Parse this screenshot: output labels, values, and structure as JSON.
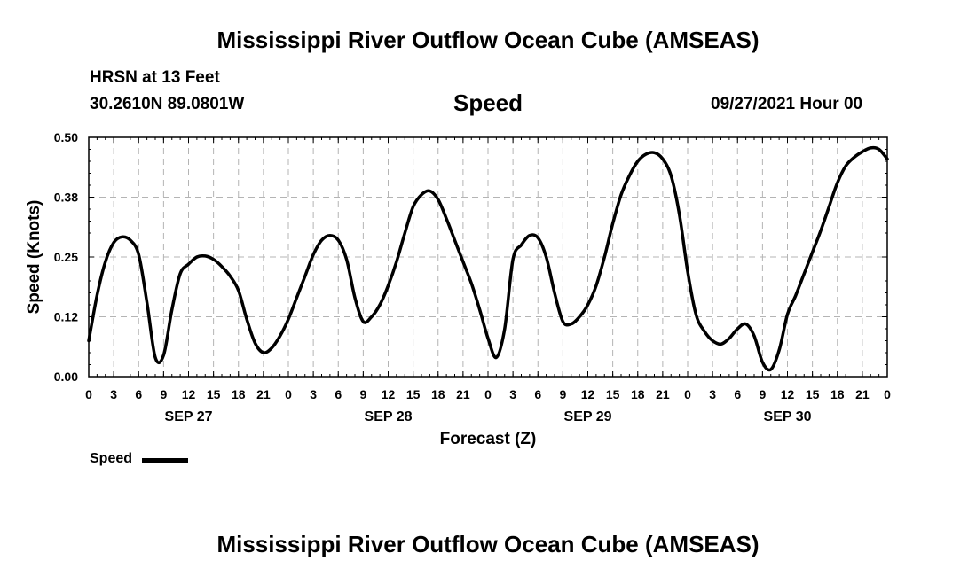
{
  "header": {
    "title": "Mississippi River Outflow Ocean Cube (AMSEAS)",
    "station": "HRSN at 13 Feet",
    "coordinates": "30.2610N  89.0801W",
    "parameter": "Speed",
    "datetime": "09/27/2021 Hour 00"
  },
  "footer": {
    "title": "Mississippi River Outflow Ocean Cube (AMSEAS)"
  },
  "chart_data": {
    "type": "line",
    "xlabel": "Forecast (Z)",
    "ylabel": "Speed (Knots)",
    "xlim": [
      0,
      96
    ],
    "ylim": [
      0,
      0.5
    ],
    "y_ticks": [
      "0.00",
      "0.12",
      "0.25",
      "0.38",
      "0.50"
    ],
    "x_tick_labels": [
      "0",
      "3",
      "6",
      "9",
      "12",
      "15",
      "18",
      "21",
      "0",
      "3",
      "6",
      "9",
      "12",
      "15",
      "18",
      "21",
      "0",
      "3",
      "6",
      "9",
      "12",
      "15",
      "18",
      "21",
      "0",
      "3",
      "6",
      "9",
      "12",
      "15",
      "18",
      "21",
      "0"
    ],
    "day_labels": [
      {
        "label": "SEP 27",
        "hour": 12
      },
      {
        "label": "SEP 28",
        "hour": 36
      },
      {
        "label": "SEP 29",
        "hour": 60
      },
      {
        "label": "SEP 30",
        "hour": 84
      }
    ],
    "grid": true,
    "series": [
      {
        "name": "Speed",
        "color": "#000000",
        "x": [
          0,
          1,
          2,
          3,
          4,
          5,
          6,
          7,
          8,
          9,
          10,
          11,
          12,
          13,
          14,
          15,
          16,
          17,
          18,
          19,
          20,
          21,
          22,
          23,
          24,
          25,
          26,
          27,
          28,
          29,
          30,
          31,
          32,
          33,
          34,
          35,
          36,
          37,
          38,
          39,
          40,
          41,
          42,
          43,
          44,
          45,
          46,
          47,
          48,
          49,
          50,
          51,
          52,
          53,
          54,
          55,
          56,
          57,
          58,
          59,
          60,
          61,
          62,
          63,
          64,
          65,
          66,
          67,
          68,
          69,
          70,
          71,
          72,
          73,
          74,
          75,
          76,
          77,
          78,
          79,
          80,
          81,
          82,
          83,
          84,
          85,
          86,
          87,
          88,
          89,
          90,
          91,
          92,
          93,
          94,
          95,
          96
        ],
        "values": [
          0.075,
          0.17,
          0.24,
          0.28,
          0.292,
          0.285,
          0.255,
          0.155,
          0.04,
          0.045,
          0.14,
          0.215,
          0.235,
          0.25,
          0.252,
          0.245,
          0.23,
          0.21,
          0.18,
          0.12,
          0.07,
          0.05,
          0.06,
          0.085,
          0.12,
          0.165,
          0.21,
          0.255,
          0.285,
          0.295,
          0.285,
          0.245,
          0.165,
          0.115,
          0.125,
          0.15,
          0.19,
          0.24,
          0.3,
          0.355,
          0.38,
          0.388,
          0.37,
          0.33,
          0.285,
          0.24,
          0.195,
          0.14,
          0.08,
          0.04,
          0.1,
          0.245,
          0.275,
          0.295,
          0.29,
          0.25,
          0.175,
          0.115,
          0.11,
          0.125,
          0.15,
          0.19,
          0.25,
          0.32,
          0.38,
          0.42,
          0.45,
          0.465,
          0.468,
          0.455,
          0.42,
          0.34,
          0.22,
          0.13,
          0.095,
          0.075,
          0.068,
          0.08,
          0.1,
          0.11,
          0.085,
          0.03,
          0.015,
          0.055,
          0.13,
          0.17,
          0.215,
          0.26,
          0.305,
          0.355,
          0.405,
          0.44,
          0.458,
          0.47,
          0.478,
          0.475,
          0.455
        ]
      }
    ],
    "legend": {
      "label": "Speed",
      "position": "bottom-left"
    }
  }
}
